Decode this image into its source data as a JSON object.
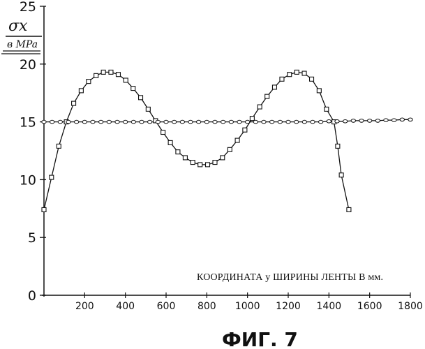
{
  "chart_data": {
    "type": "line",
    "ylabel_top": "σx",
    "ylabel_bottom": "в MPa",
    "xlabel": "КООРДИНАТА y ШИРИНЫ ЛЕНТЫ В мм.",
    "caption": "ФИГ. 7",
    "xlim": [
      0,
      1800
    ],
    "ylim": [
      0,
      25
    ],
    "x_ticks": [
      200,
      400,
      600,
      800,
      1000,
      1200,
      1400,
      1600,
      1800
    ],
    "y_ticks": [
      0,
      5,
      10,
      15,
      20,
      25
    ],
    "grid": false,
    "series": [
      {
        "marker": "square",
        "x": [
          0,
          37,
          73,
          110,
          146,
          183,
          219,
          256,
          292,
          329,
          365,
          402,
          438,
          475,
          512,
          548,
          585,
          621,
          658,
          694,
          731,
          767,
          804,
          840,
          877,
          913,
          950,
          987,
          1023,
          1060,
          1096,
          1133,
          1169,
          1206,
          1242,
          1279,
          1315,
          1352,
          1388,
          1425,
          1443,
          1461,
          1498
        ],
        "values": [
          7.4,
          10.2,
          12.9,
          15.0,
          16.6,
          17.7,
          18.5,
          19.0,
          19.3,
          19.3,
          19.1,
          18.6,
          17.9,
          17.1,
          16.1,
          15.1,
          14.1,
          13.2,
          12.4,
          11.9,
          11.5,
          11.3,
          11.3,
          11.5,
          11.9,
          12.6,
          13.4,
          14.3,
          15.3,
          16.3,
          17.2,
          18.0,
          18.7,
          19.1,
          19.3,
          19.2,
          18.7,
          17.7,
          16.1,
          15.0,
          12.9,
          10.4,
          7.4
        ]
      },
      {
        "marker": "circle",
        "x": [
          0,
          40,
          80,
          120,
          160,
          200,
          240,
          280,
          320,
          360,
          400,
          440,
          480,
          520,
          560,
          600,
          640,
          680,
          720,
          760,
          800,
          840,
          880,
          920,
          960,
          1000,
          1040,
          1080,
          1120,
          1160,
          1200,
          1240,
          1280,
          1320,
          1360,
          1400,
          1440,
          1480,
          1520,
          1560,
          1600,
          1640,
          1680,
          1720,
          1760,
          1800
        ],
        "values": [
          15.0,
          15.0,
          15.0,
          15.0,
          15.0,
          15.0,
          15.0,
          15.0,
          15.0,
          15.0,
          15.0,
          15.0,
          15.0,
          15.0,
          15.0,
          15.0,
          15.0,
          15.0,
          15.0,
          15.0,
          15.0,
          15.0,
          15.0,
          15.0,
          15.0,
          15.0,
          15.0,
          15.0,
          15.0,
          15.0,
          15.0,
          15.0,
          15.0,
          15.0,
          15.0,
          15.05,
          15.05,
          15.05,
          15.1,
          15.1,
          15.1,
          15.1,
          15.15,
          15.15,
          15.2,
          15.2
        ]
      }
    ]
  }
}
